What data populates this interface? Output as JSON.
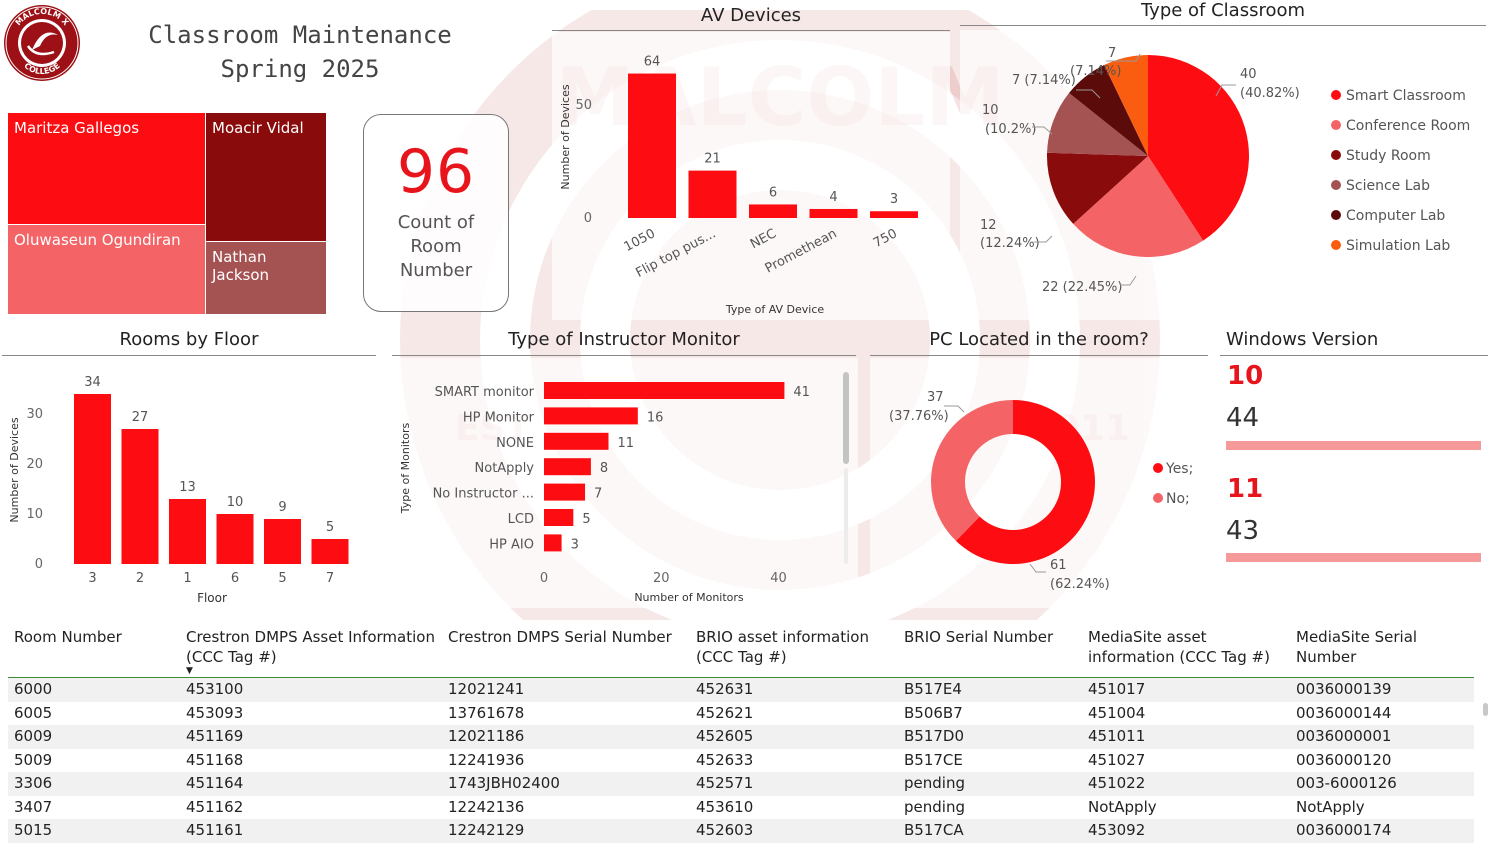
{
  "header": {
    "logo_text_top": "MALCOLM X",
    "logo_text_bottom": "COLLEGE",
    "title_line1": "Classroom Maintenance",
    "title_line2": "Spring 2025",
    "watermark_top": "MALCOLM",
    "watermark_est": "EST",
    "watermark_year": "1911"
  },
  "treemap": [
    {
      "label": "Maritza Gallegos",
      "color": "#fd0d12"
    },
    {
      "label": "Moacir Vidal",
      "color": "#8a0b0b"
    },
    {
      "label": "Oluwaseun Ogundiran",
      "color": "#f46466"
    },
    {
      "label": "Nathan Jackson",
      "color": "#a55253"
    }
  ],
  "card": {
    "value": "96",
    "label": "Count of Room Number"
  },
  "colors": {
    "accent": "#fd0d12",
    "salmon": "#f46466",
    "darkred": "#8a0b0b",
    "rose": "#a55253",
    "maroon": "#5c0b0b",
    "orange": "#fa5d0f",
    "bar_light": "#f6999b"
  },
  "av_devices": {
    "title": "AV Devices",
    "chart_data": {
      "type": "bar",
      "categories": [
        "1050",
        "Flip top pus...",
        "NEC",
        "Promethean",
        "750"
      ],
      "values": [
        64,
        21,
        6,
        4,
        3
      ],
      "xlabel": "Type of AV Device",
      "ylabel": "Number of Devices",
      "yticks": [
        0,
        50
      ],
      "ylim": [
        0,
        70
      ]
    }
  },
  "classroom_types": {
    "title": "Type of Classroom",
    "chart_data": {
      "type": "pie",
      "labels": [
        "Smart Classroom",
        "Conference Room",
        "Study Room",
        "Science Lab",
        "Computer Lab",
        "Simulation Lab"
      ],
      "values": [
        40,
        22,
        12,
        10,
        7,
        7
      ],
      "value_labels": [
        "40",
        "22 (22.45%)",
        "12",
        "10",
        "7 (7.14%)",
        "7"
      ],
      "pct_labels": [
        "(40.82%)",
        "",
        "(12.24%)",
        "(10.2%)",
        "",
        "(7.14%)"
      ],
      "colors": [
        "#fd0d12",
        "#f46466",
        "#8a0b0b",
        "#a55253",
        "#5c0b0b",
        "#fa5d0f"
      ],
      "legend": "right"
    }
  },
  "rooms_by_floor": {
    "title": "Rooms by Floor",
    "chart_data": {
      "type": "bar",
      "categories": [
        "3",
        "2",
        "1",
        "6",
        "5",
        "7"
      ],
      "values": [
        34,
        27,
        13,
        10,
        9,
        5
      ],
      "xlabel": "Floor",
      "ylabel": "Number of Devices",
      "yticks": [
        0,
        10,
        20,
        30
      ],
      "ylim": [
        0,
        38
      ]
    }
  },
  "instructor_monitor": {
    "title": "Type of Instructor Monitor",
    "chart_data": {
      "type": "bar",
      "orientation": "horizontal",
      "categories": [
        "SMART monitor",
        "HP Monitor",
        "NONE",
        "NotApply",
        "No Instructor ...",
        "LCD",
        "HP AIO"
      ],
      "values": [
        41,
        16,
        11,
        8,
        7,
        5,
        3
      ],
      "xlabel": "Number of Monitors",
      "ylabel": "Type of Monitors",
      "xticks": [
        0,
        20,
        40
      ],
      "xlim": [
        0,
        44
      ]
    }
  },
  "pc_located": {
    "title": "PC Located in the room?",
    "chart_data": {
      "type": "pie",
      "donut": true,
      "labels": [
        "Yes;",
        "No;"
      ],
      "values": [
        61,
        37
      ],
      "value_labels": [
        "61",
        "37"
      ],
      "pct_labels": [
        "(62.24%)",
        "(37.76%)"
      ],
      "colors": [
        "#fd0d12",
        "#f46466"
      ],
      "legend": "right"
    }
  },
  "windows": {
    "title": "Windows Version",
    "items": [
      {
        "version": "10",
        "count": "44",
        "fraction": 1.0
      },
      {
        "version": "11",
        "count": "43",
        "fraction": 1.0
      }
    ]
  },
  "table": {
    "columns": [
      "Room Number",
      "Crestron DMPS Asset Information (CCC Tag #)",
      "Crestron DMPS Serial Number",
      "BRIO asset information (CCC Tag #)",
      "BRIO Serial Number",
      "MediaSite asset information (CCC Tag #)",
      "MediaSite Serial Number"
    ],
    "sort_indicator": "▼",
    "rows": [
      [
        "6000",
        "453100",
        "12021241",
        "452631",
        "B517E4",
        "451017",
        "0036000139"
      ],
      [
        "6005",
        "453093",
        "13761678",
        "452621",
        "B506B7",
        "451004",
        "0036000144"
      ],
      [
        "6009",
        "451169",
        "12021186",
        "452605",
        "B517D0",
        "451011",
        "0036000001"
      ],
      [
        "5009",
        "451168",
        "12241936",
        "452633",
        "B517CE",
        "451027",
        "0036000120"
      ],
      [
        "3306",
        "451164",
        "1743JBH02400",
        "452571",
        "pending",
        "451022",
        "003-6000126"
      ],
      [
        "3407",
        "451162",
        "12242136",
        "453610",
        "pending",
        "NotApply",
        "NotApply"
      ],
      [
        "5015",
        "451161",
        "12242129",
        "452603",
        "B517CA",
        "453092",
        "0036000174"
      ]
    ]
  }
}
